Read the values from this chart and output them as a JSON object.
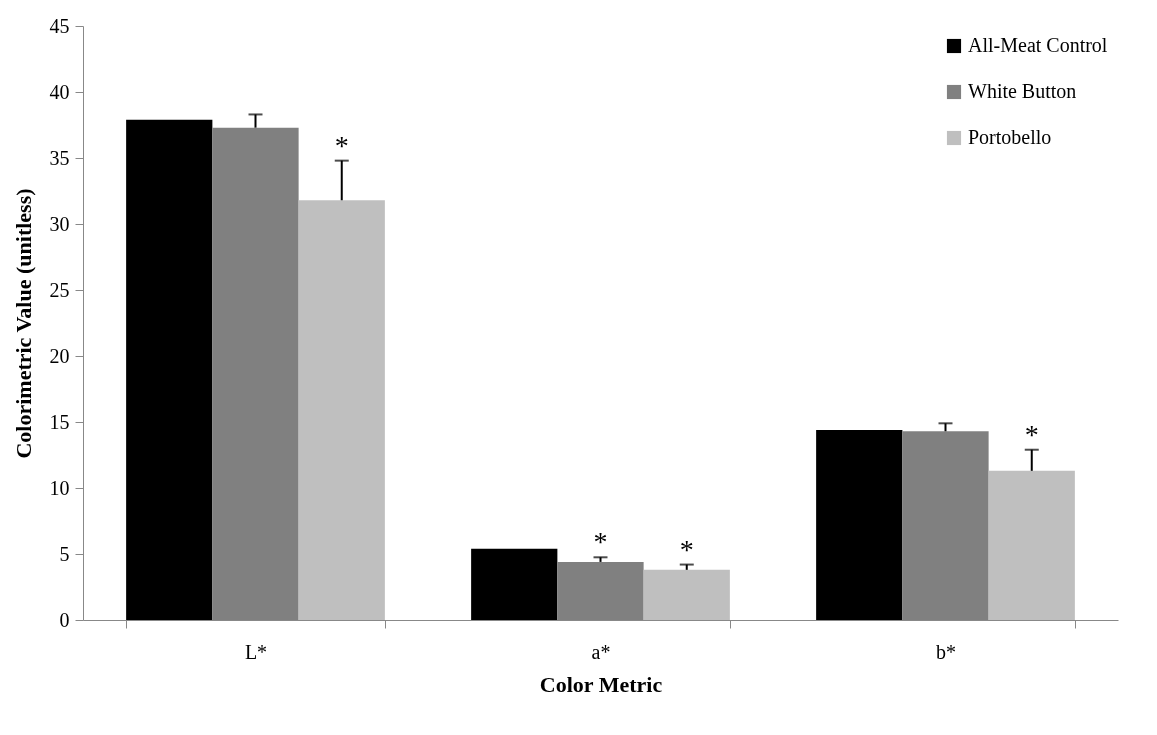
{
  "chart_data": {
    "type": "bar",
    "xlabel": "Color Metric",
    "ylabel": "Colorimetric Value (unitless)",
    "categories": [
      "L*",
      "a*",
      "b*"
    ],
    "series": [
      {
        "name": "All-Meat Control",
        "color": "#000000",
        "values": [
          37.9,
          5.4,
          14.4
        ]
      },
      {
        "name": "White Button",
        "color": "#808080",
        "values": [
          37.3,
          4.4,
          14.3
        ],
        "errors": [
          [
            37.3,
            38.3
          ],
          [
            4.4,
            4.75
          ],
          [
            14.3,
            14.9
          ]
        ],
        "value_labels": [
          null,
          "*",
          null
        ]
      },
      {
        "name": "Portobello",
        "color": "#bfbfbf",
        "values": [
          31.8,
          3.8,
          11.3
        ],
        "errors": [
          [
            31.8,
            34.8
          ],
          [
            3.8,
            4.2
          ],
          [
            11.3,
            12.9
          ]
        ],
        "value_labels": [
          "*",
          "*",
          "*"
        ]
      }
    ],
    "ylim": [
      0,
      45
    ],
    "yticks": [
      0,
      5,
      10,
      15,
      20,
      25,
      30,
      35,
      40,
      45
    ],
    "grid": false,
    "legend": "top right"
  }
}
